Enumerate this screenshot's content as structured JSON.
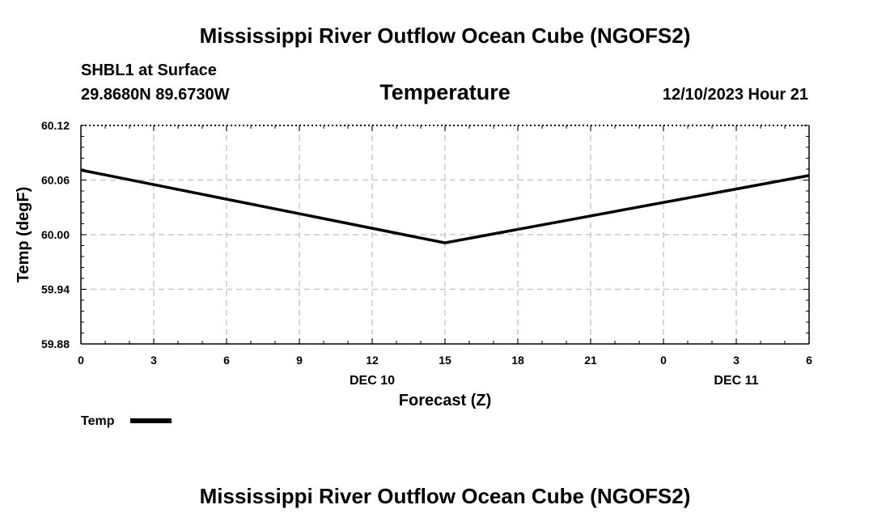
{
  "header": {
    "title_top": "Mississippi River Outflow Ocean Cube (NGOFS2)",
    "title_bottom": "Mississippi River Outflow Ocean Cube (NGOFS2)",
    "station": "SHBL1 at Surface",
    "coords": "29.8680N  89.6730W",
    "variable": "Temperature",
    "date": "12/10/2023 Hour 21"
  },
  "chart_data": {
    "type": "line",
    "xlabel": "Forecast (Z)",
    "ylabel": "Temp (degF)",
    "ylim": [
      59.88,
      60.12
    ],
    "xlim": [
      0,
      30
    ],
    "y_ticks": [
      "59.88",
      "59.94",
      "60.00",
      "60.06",
      "60.12"
    ],
    "x_ticks": [
      "0",
      "3",
      "6",
      "9",
      "12",
      "15",
      "18",
      "21",
      "0",
      "3",
      "6"
    ],
    "day_labels": [
      {
        "label": "DEC 10",
        "hour": 12
      },
      {
        "label": "DEC 11",
        "hour": 27
      }
    ],
    "grid": true,
    "series": [
      {
        "name": "Temp",
        "color": "#000000",
        "x": [
          0,
          15,
          30
        ],
        "values": [
          60.071,
          59.991,
          60.065
        ]
      }
    ],
    "legend": {
      "position": "bottom-left",
      "label": "Temp"
    }
  }
}
